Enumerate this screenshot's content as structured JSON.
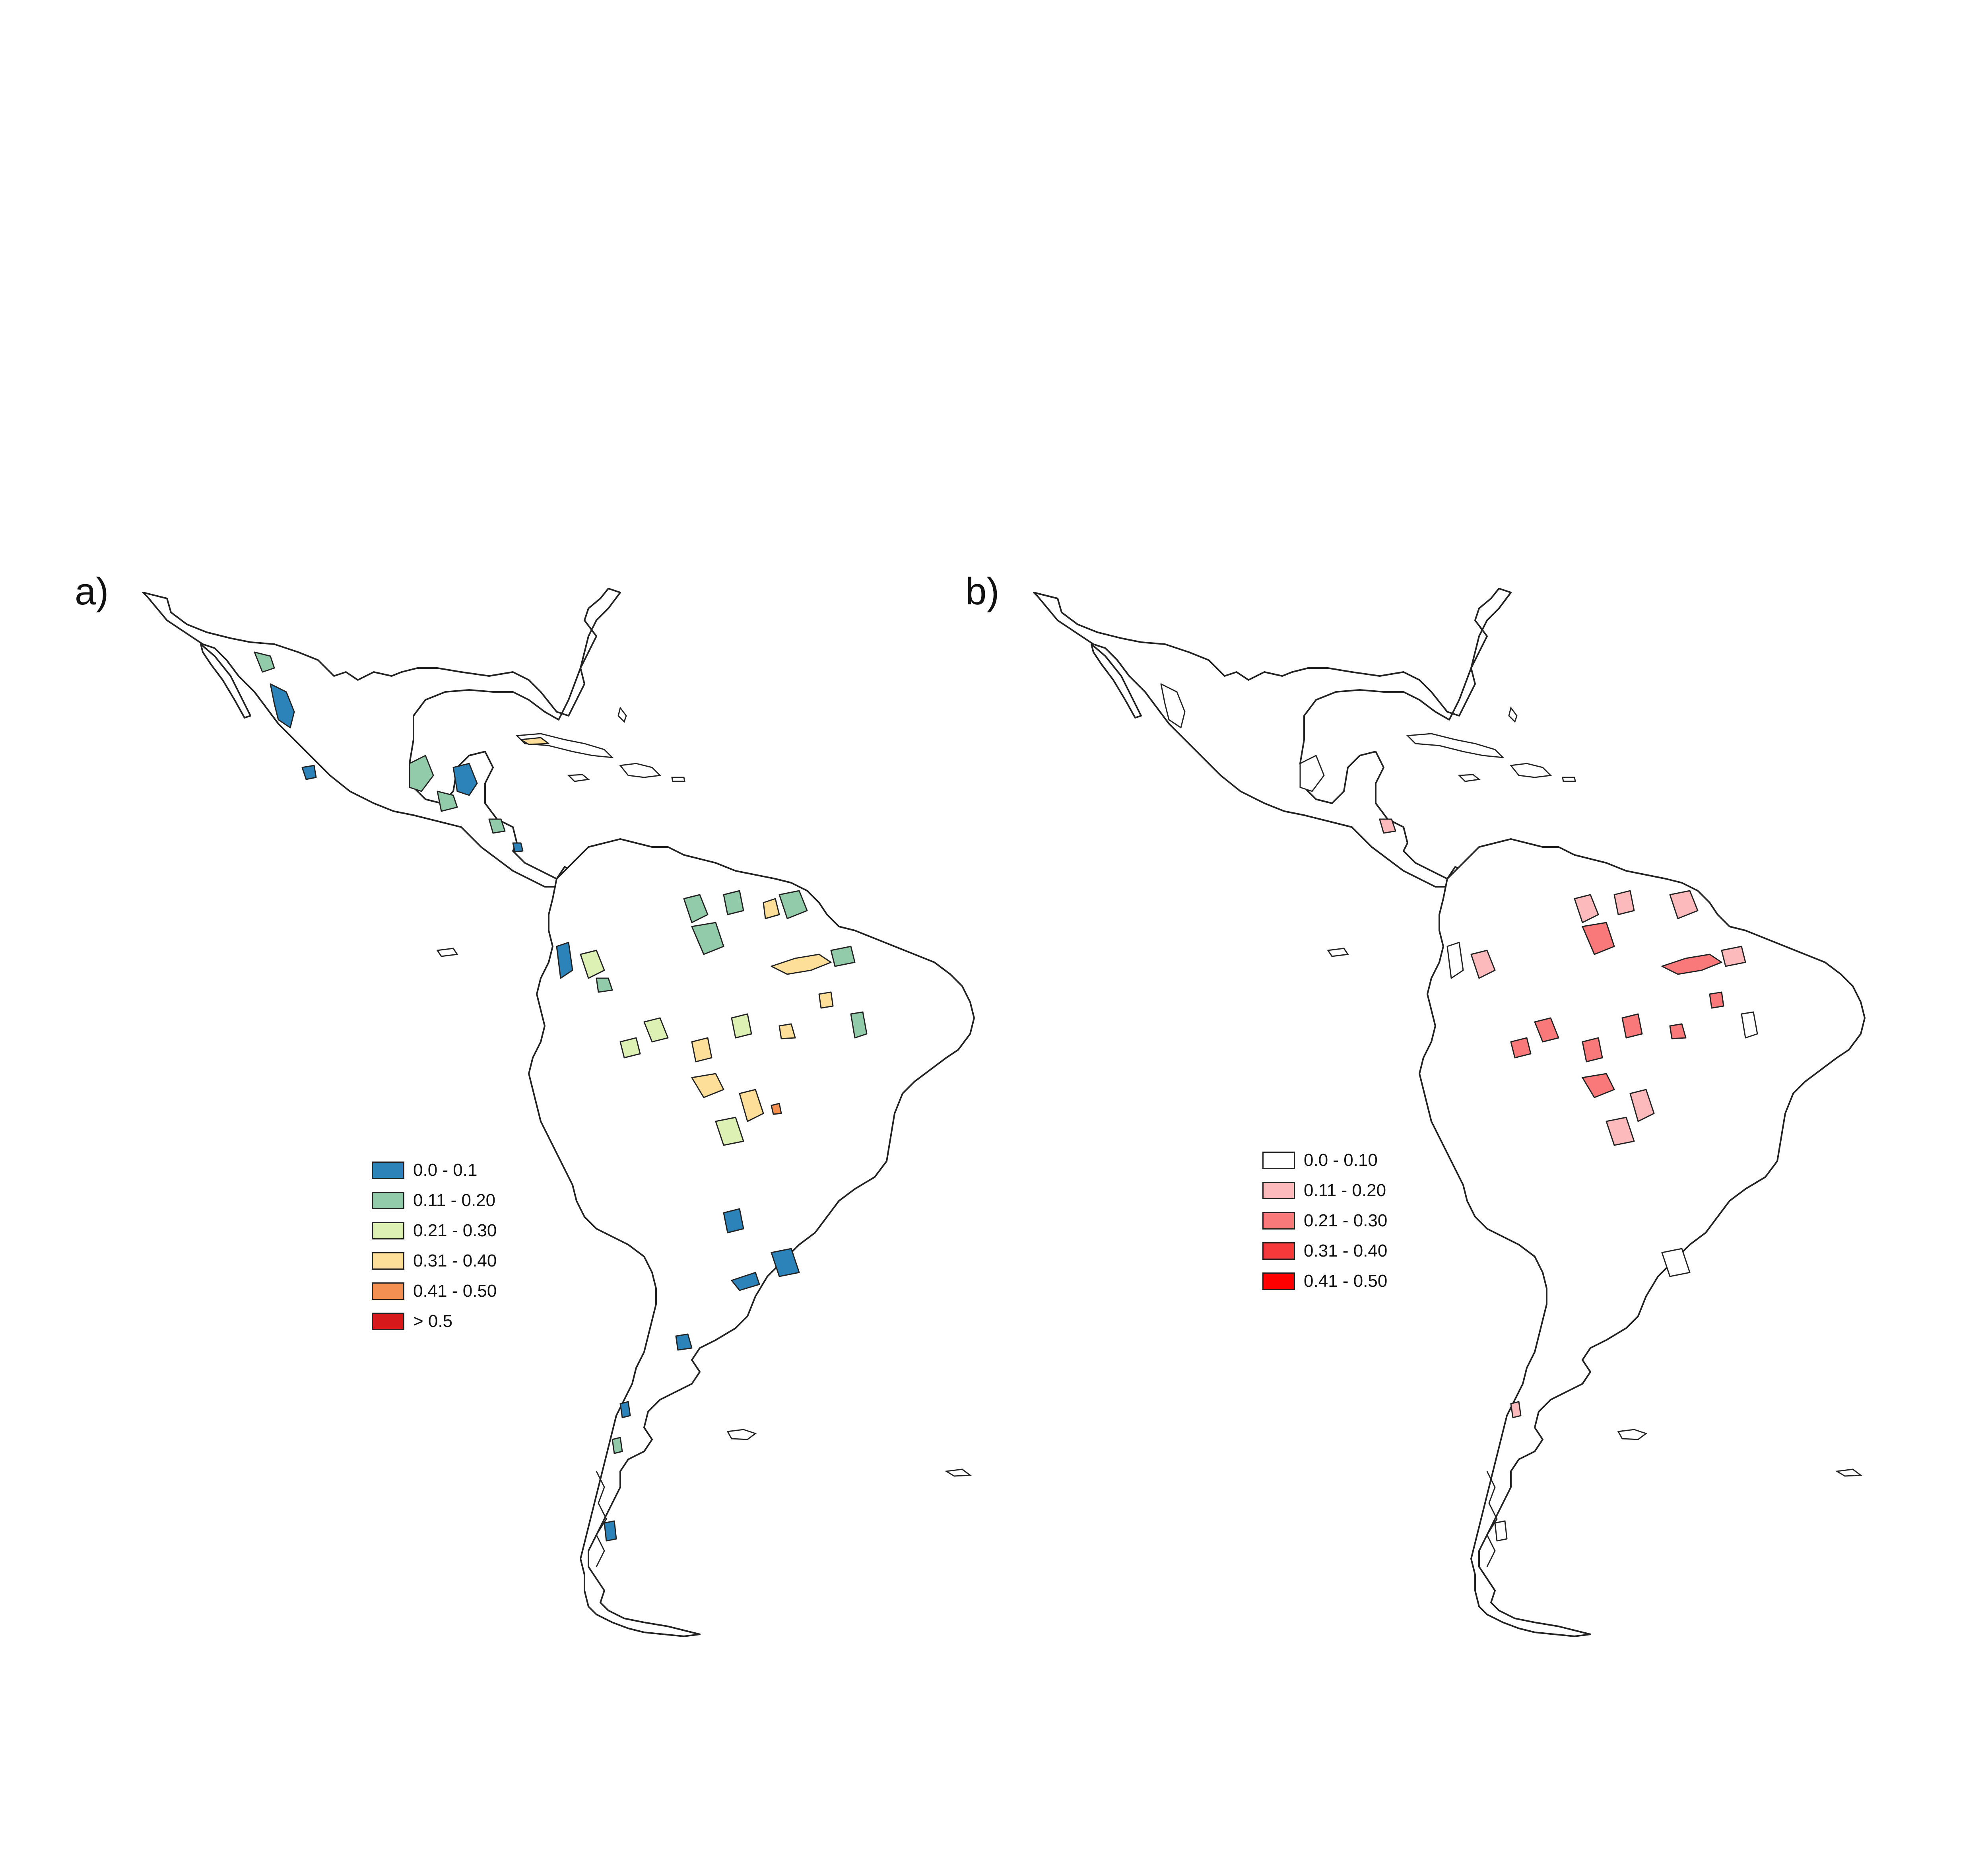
{
  "panels": [
    {
      "label": "a)",
      "legend": [
        {
          "label": "0.0 - 0.1",
          "color": "#2b83ba"
        },
        {
          "label": "0.11 - 0.20",
          "color": "#91cba9"
        },
        {
          "label": "0.21 - 0.30",
          "color": "#ddf1b4"
        },
        {
          "label": "0.31 - 0.40",
          "color": "#fedf99"
        },
        {
          "label": "0.41 - 0.50",
          "color": "#f59053"
        },
        {
          "label": "> 0.5",
          "color": "#d7191c"
        }
      ]
    },
    {
      "label": "b)",
      "legend": [
        {
          "label": "0.0 - 0.10",
          "color": "#ffffff"
        },
        {
          "label": "0.11 - 0.20",
          "color": "#fcbabc"
        },
        {
          "label": "0.21 - 0.30",
          "color": "#f9797b"
        },
        {
          "label": "0.31 - 0.40",
          "color": "#f5393b"
        },
        {
          "label": "0.41 - 0.50",
          "color": "#ff0000"
        }
      ]
    }
  ]
}
